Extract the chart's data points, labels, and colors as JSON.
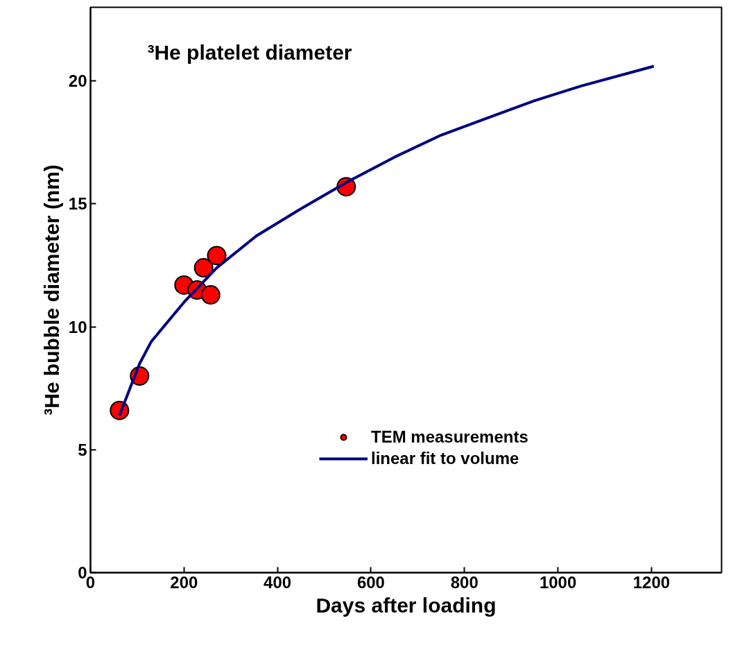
{
  "chart_data": {
    "type": "scatter",
    "title": "³He platelet diameter",
    "xlabel": "Days after loading",
    "ylabel": "³He bubble diameter (nm)",
    "xlim": [
      0,
      1350
    ],
    "xticks": [
      0,
      200,
      400,
      600,
      800,
      1000,
      1200
    ],
    "ylim": [
      0,
      23
    ],
    "yticks": [
      0,
      5,
      10,
      15,
      20
    ],
    "legend": "bottom right",
    "grid": false,
    "series": [
      {
        "name": "TEM measurements",
        "marker": "circle",
        "color": "#ff0000",
        "x": [
          62,
          105,
          200,
          228,
          242,
          257,
          270,
          547
        ],
        "values": [
          6.6,
          8.0,
          11.7,
          11.5,
          12.4,
          11.3,
          12.9,
          15.7
        ]
      },
      {
        "name": "linear fit to volume",
        "type": "line",
        "color": "#000080",
        "x": [
          62,
          105,
          130,
          200,
          270,
          355,
          450,
          550,
          650,
          750,
          850,
          950,
          1050,
          1205
        ],
        "values": [
          6.4,
          8.5,
          9.4,
          11.0,
          12.4,
          13.7,
          14.8,
          15.9,
          16.9,
          17.8,
          18.5,
          19.2,
          19.8,
          20.6
        ]
      }
    ]
  }
}
